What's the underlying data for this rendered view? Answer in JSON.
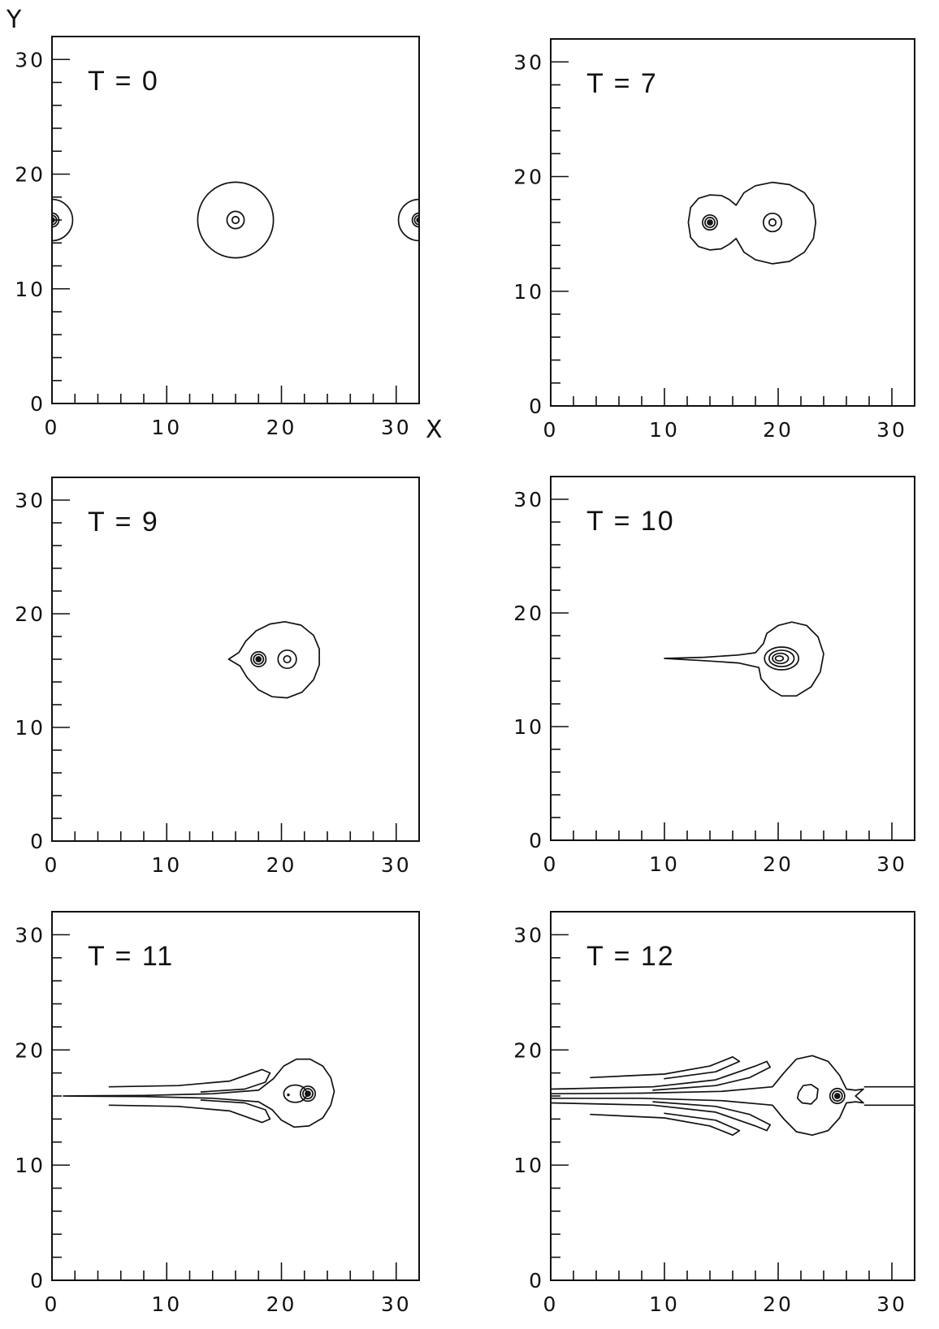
{
  "chart_data": {
    "type": "contour",
    "layout": "3x2 grid of panels",
    "xlabel": "X",
    "ylabel": "Y",
    "xlim": [
      0,
      32
    ],
    "ylim": [
      0,
      32
    ],
    "major_ticks": [
      0,
      10,
      20,
      30
    ],
    "minor_tick_step": 2,
    "panels": [
      {
        "title": "T = 0",
        "contours": [
          {
            "kind": "ring",
            "cx": 0,
            "cy": 16,
            "r": 1.8,
            "clip": "left"
          },
          {
            "kind": "dense-core",
            "cx": 0,
            "cy": 16,
            "r": 0.6,
            "rings": 3
          },
          {
            "kind": "ring",
            "cx": 16,
            "cy": 16,
            "r": 3.3
          },
          {
            "kind": "ring",
            "cx": 16,
            "cy": 16,
            "r": 0.75
          },
          {
            "kind": "ring",
            "cx": 16,
            "cy": 16,
            "r": 0.3
          },
          {
            "kind": "ring",
            "cx": 32,
            "cy": 16,
            "r": 1.8,
            "clip": "right"
          },
          {
            "kind": "dense-core",
            "cx": 32,
            "cy": 16,
            "r": 0.6,
            "rings": 3
          }
        ]
      },
      {
        "title": "T = 7",
        "contours": [
          {
            "kind": "path",
            "points": [
              [
                16.3,
                17.5
              ],
              [
                15.7,
                18.0
              ],
              [
                15.0,
                18.35
              ],
              [
                14.0,
                18.4
              ],
              [
                13.0,
                18.1
              ],
              [
                12.3,
                17.3
              ],
              [
                12.1,
                16.0
              ],
              [
                12.3,
                14.7
              ],
              [
                13.0,
                13.9
              ],
              [
                14.0,
                13.6
              ],
              [
                15.0,
                13.7
              ],
              [
                15.7,
                14.1
              ],
              [
                16.3,
                14.6
              ],
              [
                17.0,
                13.4
              ],
              [
                18.0,
                12.75
              ],
              [
                19.5,
                12.4
              ],
              [
                21.0,
                12.6
              ],
              [
                22.3,
                13.4
              ],
              [
                23.1,
                14.6
              ],
              [
                23.3,
                16.0
              ],
              [
                23.1,
                17.5
              ],
              [
                22.3,
                18.6
              ],
              [
                21.0,
                19.3
              ],
              [
                19.5,
                19.5
              ],
              [
                18.0,
                19.2
              ],
              [
                17.0,
                18.6
              ]
            ],
            "closed": true
          },
          {
            "kind": "dense-core",
            "cx": 14,
            "cy": 16,
            "r": 0.65,
            "rings": 3
          },
          {
            "kind": "ring",
            "cx": 19.5,
            "cy": 16,
            "r": 0.8
          },
          {
            "kind": "ring",
            "cx": 19.5,
            "cy": 16,
            "r": 0.3
          }
        ]
      },
      {
        "title": "T = 9",
        "contours": [
          {
            "kind": "path",
            "points": [
              [
                15.4,
                16.0
              ],
              [
                16.3,
                16.6
              ],
              [
                16.9,
                17.6
              ],
              [
                17.8,
                18.5
              ],
              [
                19.0,
                19.1
              ],
              [
                20.3,
                19.3
              ],
              [
                21.7,
                19.0
              ],
              [
                22.8,
                18.1
              ],
              [
                23.3,
                16.9
              ],
              [
                23.3,
                15.5
              ],
              [
                22.8,
                14.2
              ],
              [
                21.8,
                13.1
              ],
              [
                20.5,
                12.6
              ],
              [
                19.2,
                12.7
              ],
              [
                18.0,
                13.3
              ],
              [
                17.0,
                14.4
              ],
              [
                16.4,
                15.4
              ]
            ],
            "closed": true
          },
          {
            "kind": "dense-core",
            "cx": 18,
            "cy": 16,
            "r": 0.65,
            "rings": 3
          },
          {
            "kind": "ring",
            "cx": 20.5,
            "cy": 16,
            "r": 0.8
          },
          {
            "kind": "ring",
            "cx": 20.5,
            "cy": 16,
            "r": 0.3
          }
        ]
      },
      {
        "title": "T = 10",
        "contours": [
          {
            "kind": "path",
            "points": [
              [
                10.0,
                16.0
              ],
              [
                13.5,
                16.1
              ],
              [
                16.5,
                16.3
              ],
              [
                18.0,
                16.5
              ],
              [
                18.7,
                17.3
              ],
              [
                19.0,
                18.2
              ],
              [
                20.0,
                18.9
              ],
              [
                21.2,
                19.2
              ],
              [
                22.5,
                18.9
              ],
              [
                23.5,
                17.9
              ],
              [
                24.0,
                16.4
              ],
              [
                23.7,
                14.8
              ],
              [
                22.9,
                13.5
              ],
              [
                21.6,
                12.7
              ],
              [
                20.3,
                12.7
              ],
              [
                19.3,
                13.3
              ],
              [
                18.5,
                14.2
              ],
              [
                18.3,
                15.2
              ],
              [
                16.5,
                15.6
              ],
              [
                13.5,
                15.8
              ]
            ],
            "closed": true
          },
          {
            "kind": "ring",
            "cx": 20.3,
            "cy": 16,
            "rx": 1.5,
            "ry": 1.0
          },
          {
            "kind": "ring",
            "cx": 20.3,
            "cy": 16,
            "rx": 1.1,
            "ry": 0.72
          },
          {
            "kind": "ring",
            "cx": 20.2,
            "cy": 16,
            "rx": 0.7,
            "ry": 0.45
          },
          {
            "kind": "ring",
            "cx": 20.1,
            "cy": 16,
            "rx": 0.35,
            "ry": 0.22
          }
        ]
      },
      {
        "title": "T = 11",
        "contours": [
          {
            "kind": "path",
            "points": [
              [
                1.0,
                16.0
              ],
              [
                8.0,
                16.05
              ],
              [
                14.0,
                16.2
              ],
              [
                18.0,
                16.5
              ],
              [
                19.3,
                17.5
              ],
              [
                20.2,
                18.6
              ],
              [
                21.3,
                19.2
              ],
              [
                22.5,
                19.2
              ],
              [
                23.6,
                18.6
              ],
              [
                24.3,
                17.6
              ],
              [
                24.6,
                16.4
              ],
              [
                24.3,
                15.2
              ],
              [
                23.6,
                14.1
              ],
              [
                22.4,
                13.4
              ],
              [
                21.1,
                13.3
              ],
              [
                20.0,
                13.9
              ],
              [
                19.2,
                14.8
              ],
              [
                18.0,
                15.5
              ],
              [
                14.0,
                15.8
              ],
              [
                8.0,
                15.95
              ]
            ],
            "closed": true
          },
          {
            "kind": "path",
            "points": [
              [
                5.0,
                16.8
              ],
              [
                11.0,
                16.9
              ],
              [
                15.5,
                17.3
              ],
              [
                18.3,
                18.3
              ],
              [
                19.0,
                18.0
              ],
              [
                18.6,
                17.2
              ],
              [
                16.8,
                16.6
              ],
              [
                13.0,
                16.35
              ]
            ],
            "closed": false
          },
          {
            "kind": "path",
            "points": [
              [
                5.0,
                15.2
              ],
              [
                11.0,
                15.1
              ],
              [
                15.5,
                14.7
              ],
              [
                18.3,
                13.7
              ],
              [
                19.0,
                14.0
              ],
              [
                18.6,
                14.8
              ],
              [
                16.8,
                15.4
              ],
              [
                13.0,
                15.65
              ]
            ],
            "closed": false
          },
          {
            "kind": "ring",
            "cx": 21.2,
            "cy": 16.2,
            "rx": 1.0,
            "ry": 0.75
          },
          {
            "kind": "dot",
            "cx": 20.6,
            "cy": 16.1,
            "r": 0.12
          },
          {
            "kind": "dense-core",
            "cx": 22.3,
            "cy": 16.2,
            "r": 0.65,
            "rings": 3
          }
        ]
      },
      {
        "title": "T = 12",
        "contours": [
          {
            "kind": "path",
            "points": [
              [
                0.0,
                16.2
              ],
              [
                8.0,
                16.25
              ],
              [
                15.0,
                16.4
              ],
              [
                19.5,
                16.8
              ],
              [
                20.5,
                18.0
              ],
              [
                21.6,
                19.2
              ],
              [
                23.0,
                19.5
              ],
              [
                24.4,
                19.0
              ],
              [
                25.4,
                17.8
              ],
              [
                26.0,
                16.6
              ],
              [
                26.8,
                16.5
              ],
              [
                27.5,
                16.6
              ],
              [
                26.8,
                16.0
              ],
              [
                27.5,
                15.4
              ],
              [
                26.8,
                15.5
              ],
              [
                26.0,
                15.4
              ],
              [
                25.4,
                14.1
              ],
              [
                24.4,
                13.0
              ],
              [
                23.0,
                12.6
              ],
              [
                21.6,
                12.9
              ],
              [
                20.5,
                14.0
              ],
              [
                19.5,
                15.2
              ],
              [
                15.0,
                15.6
              ],
              [
                8.0,
                15.8
              ],
              [
                0.0,
                15.8
              ]
            ],
            "closed": false
          },
          {
            "kind": "path",
            "points": [
              [
                3.5,
                17.6
              ],
              [
                10.0,
                17.9
              ],
              [
                14.0,
                18.6
              ],
              [
                16.0,
                19.4
              ],
              [
                16.6,
                19.0
              ],
              [
                14.5,
                18.1
              ],
              [
                10.0,
                17.5
              ]
            ],
            "closed": false
          },
          {
            "kind": "path",
            "points": [
              [
                3.5,
                14.4
              ],
              [
                10.0,
                14.1
              ],
              [
                14.0,
                13.4
              ],
              [
                16.0,
                12.6
              ],
              [
                16.6,
                13.0
              ],
              [
                14.5,
                13.9
              ],
              [
                10.0,
                14.5
              ]
            ],
            "closed": false
          },
          {
            "kind": "path",
            "points": [
              [
                0.0,
                16.6
              ],
              [
                9.0,
                16.8
              ],
              [
                14.5,
                17.4
              ],
              [
                18.0,
                18.6
              ],
              [
                19.0,
                19.0
              ],
              [
                19.3,
                18.5
              ],
              [
                17.5,
                17.6
              ],
              [
                14.5,
                16.9
              ],
              [
                9.0,
                16.5
              ]
            ],
            "closed": false
          },
          {
            "kind": "path",
            "points": [
              [
                0.0,
                15.4
              ],
              [
                9.0,
                15.2
              ],
              [
                14.5,
                14.6
              ],
              [
                18.0,
                13.4
              ],
              [
                19.0,
                13.0
              ],
              [
                19.3,
                13.5
              ],
              [
                17.5,
                14.4
              ],
              [
                14.5,
                15.1
              ],
              [
                9.0,
                15.5
              ]
            ],
            "closed": false
          },
          {
            "kind": "path",
            "points": [
              [
                27.6,
                16.8
              ],
              [
                32.0,
                16.8
              ]
            ],
            "closed": false
          },
          {
            "kind": "path",
            "points": [
              [
                27.6,
                15.2
              ],
              [
                32.0,
                15.2
              ]
            ],
            "closed": false
          },
          {
            "kind": "path",
            "points": [
              [
                21.8,
                16.3
              ],
              [
                22.2,
                16.9
              ],
              [
                22.9,
                17.0
              ],
              [
                23.5,
                16.6
              ],
              [
                23.4,
                15.8
              ],
              [
                22.9,
                15.3
              ],
              [
                22.1,
                15.4
              ],
              [
                21.7,
                15.8
              ]
            ],
            "closed": true
          },
          {
            "kind": "dense-core",
            "cx": 25.2,
            "cy": 16.0,
            "r": 0.65,
            "rings": 3
          }
        ]
      }
    ]
  }
}
